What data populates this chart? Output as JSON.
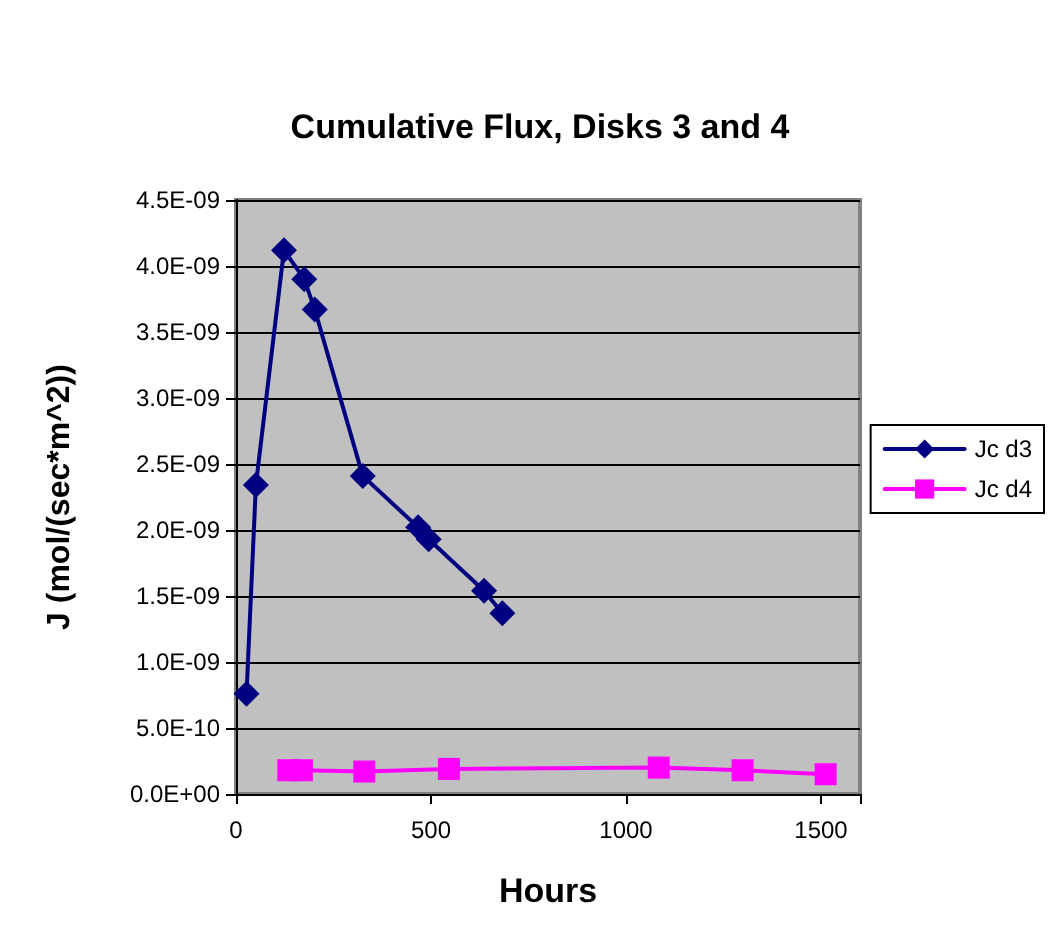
{
  "chart_data": {
    "type": "line",
    "title": "Cumulative Flux, Disks 3 and 4",
    "xlabel": "Hours",
    "ylabel": "J (mol/(sec*m^2))",
    "xlim": [
      0,
      1600
    ],
    "xticks": [
      0,
      500,
      1000,
      1500
    ],
    "ylim": [
      0,
      4.5e-09
    ],
    "yticks": [
      {
        "value": 0,
        "label": "0.0E+00"
      },
      {
        "value": 5e-10,
        "label": "5.0E-10"
      },
      {
        "value": 1e-09,
        "label": "1.0E-09"
      },
      {
        "value": 1.5e-09,
        "label": "1.5E-09"
      },
      {
        "value": 2e-09,
        "label": "2.0E-09"
      },
      {
        "value": 2.5e-09,
        "label": "2.5E-09"
      },
      {
        "value": 3e-09,
        "label": "3.0E-09"
      },
      {
        "value": 3.5e-09,
        "label": "3.5E-09"
      },
      {
        "value": 4e-09,
        "label": "4.0E-09"
      },
      {
        "value": 4.5e-09,
        "label": "4.5E-09"
      }
    ],
    "grid": "y",
    "legend": "right",
    "series": [
      {
        "name": "Jc d3",
        "color": "#000080",
        "marker": "diamond",
        "x": [
          27,
          51,
          123,
          175,
          202,
          325,
          467,
          494,
          636,
          683
        ],
        "values": [
          7.6e-10,
          2.34e-09,
          4.12e-09,
          3.9e-09,
          3.67e-09,
          2.41e-09,
          2.02e-09,
          1.93e-09,
          1.54e-09,
          1.37e-09
        ]
      },
      {
        "name": "Jc d4",
        "color": "#ff00ff",
        "marker": "square",
        "x": [
          134,
          169,
          329,
          546,
          1084,
          1299,
          1512
        ],
        "values": [
          1.8e-10,
          1.8e-10,
          1.7e-10,
          1.9e-10,
          2e-10,
          1.8e-10,
          1.5e-10
        ]
      }
    ]
  }
}
